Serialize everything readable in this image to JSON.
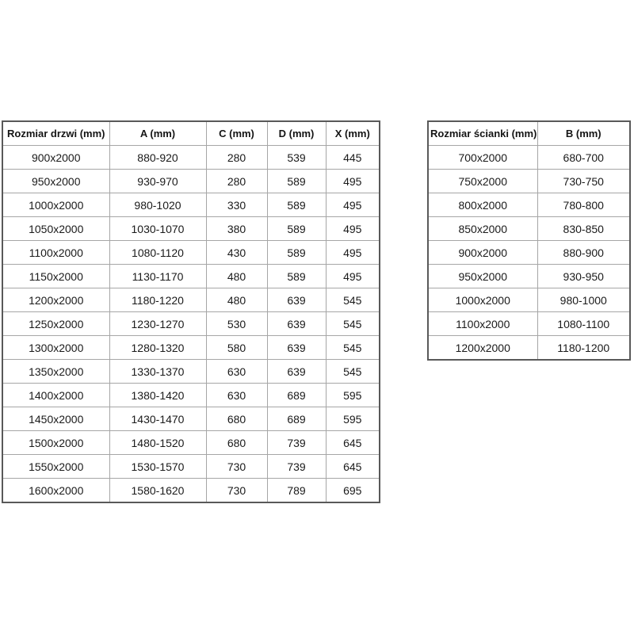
{
  "colors": {
    "background": "#ffffff",
    "text": "#1a1a1a",
    "header_text": "#141414",
    "outer_border": "#595959",
    "inner_border": "#a6a6a6"
  },
  "chart_data": [
    {
      "type": "table",
      "name": "door-dimensions",
      "title": "Rozmiar drzwi (mm)",
      "columns": [
        "Rozmiar drzwi (mm)",
        "A (mm)",
        "C (mm)",
        "D (mm)",
        "X (mm)"
      ],
      "rows": [
        [
          "900x2000",
          "880-920",
          "280",
          "539",
          "445"
        ],
        [
          "950x2000",
          "930-970",
          "280",
          "589",
          "495"
        ],
        [
          "1000x2000",
          "980-1020",
          "330",
          "589",
          "495"
        ],
        [
          "1050x2000",
          "1030-1070",
          "380",
          "589",
          "495"
        ],
        [
          "1100x2000",
          "1080-1120",
          "430",
          "589",
          "495"
        ],
        [
          "1150x2000",
          "1130-1170",
          "480",
          "589",
          "495"
        ],
        [
          "1200x2000",
          "1180-1220",
          "480",
          "639",
          "545"
        ],
        [
          "1250x2000",
          "1230-1270",
          "530",
          "639",
          "545"
        ],
        [
          "1300x2000",
          "1280-1320",
          "580",
          "639",
          "545"
        ],
        [
          "1350x2000",
          "1330-1370",
          "630",
          "639",
          "545"
        ],
        [
          "1400x2000",
          "1380-1420",
          "630",
          "689",
          "595"
        ],
        [
          "1450x2000",
          "1430-1470",
          "680",
          "689",
          "595"
        ],
        [
          "1500x2000",
          "1480-1520",
          "680",
          "739",
          "645"
        ],
        [
          "1550x2000",
          "1530-1570",
          "730",
          "739",
          "645"
        ],
        [
          "1600x2000",
          "1580-1620",
          "730",
          "789",
          "695"
        ]
      ]
    },
    {
      "type": "table",
      "name": "wall-panel-dimensions",
      "title": "Rozmiar ścianki (mm)",
      "columns": [
        "Rozmiar ścianki (mm)",
        "B (mm)"
      ],
      "rows": [
        [
          "700x2000",
          "680-700"
        ],
        [
          "750x2000",
          "730-750"
        ],
        [
          "800x2000",
          "780-800"
        ],
        [
          "850x2000",
          "830-850"
        ],
        [
          "900x2000",
          "880-900"
        ],
        [
          "950x2000",
          "930-950"
        ],
        [
          "1000x2000",
          "980-1000"
        ],
        [
          "1100x2000",
          "1080-1100"
        ],
        [
          "1200x2000",
          "1180-1200"
        ]
      ]
    }
  ]
}
